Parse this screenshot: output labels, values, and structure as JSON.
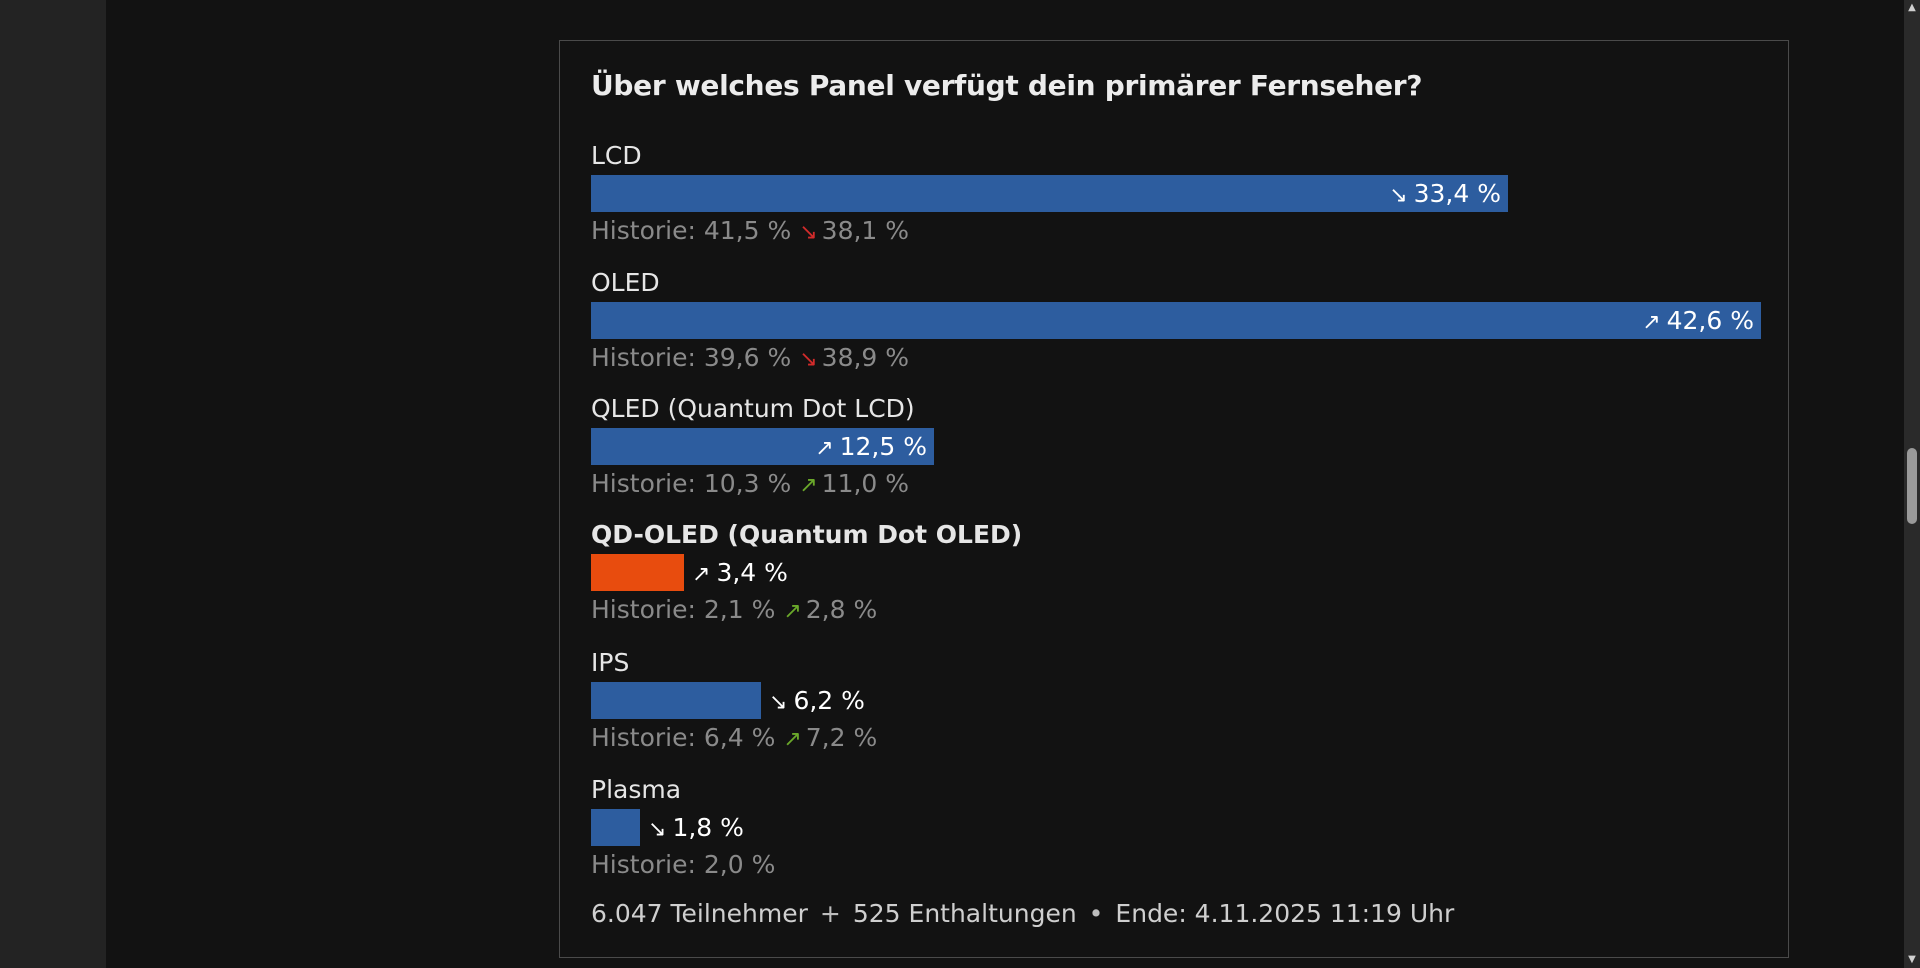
{
  "chart_data": {
    "type": "bar",
    "title": "Über welches Panel verfügt dein primärer Fernseher?",
    "xlabel": "",
    "ylabel": "",
    "ylim": [
      0,
      100
    ],
    "unit": "%",
    "options": [
      {
        "label": "LCD",
        "value": 33.4,
        "value_text": "33,4 %",
        "trend": "down",
        "history_label": "Historie:",
        "history": [
          "41,5 %",
          "38,1 %"
        ],
        "history_trend": "down",
        "highlight": false
      },
      {
        "label": "OLED",
        "value": 42.6,
        "value_text": "42,6 %",
        "trend": "up",
        "history_label": "Historie:",
        "history": [
          "39,6 %",
          "38,9 %"
        ],
        "history_trend": "down",
        "highlight": false
      },
      {
        "label": "QLED (Quantum Dot LCD)",
        "value": 12.5,
        "value_text": "12,5 %",
        "trend": "up",
        "history_label": "Historie:",
        "history": [
          "10,3 %",
          "11,0 %"
        ],
        "history_trend": "up",
        "highlight": false
      },
      {
        "label": "QD-OLED (Quantum Dot OLED)",
        "value": 3.4,
        "value_text": "3,4 %",
        "trend": "up",
        "history_label": "Historie:",
        "history": [
          "2,1 %",
          "2,8 %"
        ],
        "history_trend": "up",
        "highlight": true
      },
      {
        "label": "IPS",
        "value": 6.2,
        "value_text": "6,2 %",
        "trend": "down",
        "history_label": "Historie:",
        "history": [
          "6,4 %",
          "7,2 %"
        ],
        "history_trend": "up",
        "highlight": false
      },
      {
        "label": "Plasma",
        "value": 1.8,
        "value_text": "1,8 %",
        "trend": "down",
        "history_label": "Historie:",
        "history": [
          "2,0 %"
        ],
        "history_trend": "",
        "highlight": false
      }
    ]
  },
  "footer": {
    "participants": "6.047 Teilnehmer",
    "plus": "+",
    "abstentions": "525 Enthaltungen",
    "bullet": "•",
    "end": "Ende: 4.11.2025 11:19 Uhr"
  },
  "colors": {
    "bar": "#2d5d9f",
    "bar_highlight": "#e84c0e",
    "trend_down": "#d22b2b",
    "trend_up": "#6aa82a",
    "background": "#121212"
  },
  "icons": {
    "trend_up": "↗",
    "trend_down": "↘",
    "scroll_up": "▲",
    "scroll_down": "▼"
  }
}
